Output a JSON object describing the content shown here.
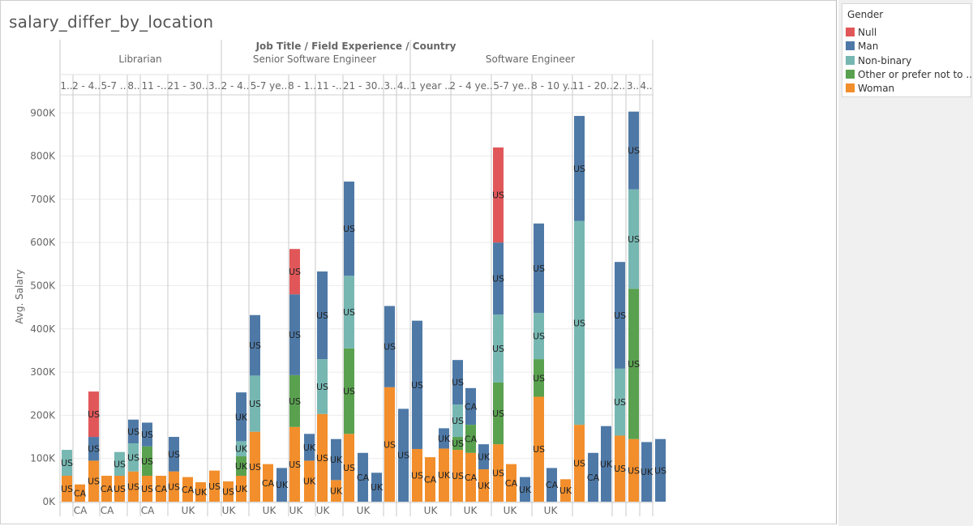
{
  "page_title": "salary_differ_by_location",
  "colors": {
    "Null": "#e15759",
    "Man": "#4e79a7",
    "Non-binary": "#76b7b2",
    "Other or prefer not to ..": "#59a14f",
    "Woman": "#f28e2b"
  },
  "legend": {
    "title": "Gender",
    "items": [
      "Null",
      "Man",
      "Non-binary",
      "Other or prefer not to ..",
      "Woman"
    ]
  },
  "chart_data": {
    "type": "bar",
    "stacked": true,
    "title": "salary_differ_by_location",
    "column_header_title": "Job Title / Field Experience / Country",
    "ylabel": "Avg. Salary",
    "ylim": [
      0,
      950000
    ],
    "yticks": [
      0,
      100000,
      200000,
      300000,
      400000,
      500000,
      600000,
      700000,
      800000,
      900000
    ],
    "ytick_labels": [
      "0K",
      "100K",
      "200K",
      "300K",
      "400K",
      "500K",
      "600K",
      "700K",
      "800K",
      "900K"
    ],
    "job_titles": [
      "Librarian",
      "Senior Software Engineer",
      "Software Engineer"
    ],
    "experience_labels": [
      "1..",
      "2 - 4..",
      "5-7 ..",
      "8..",
      "11 -..",
      "21 - 30..",
      "3..",
      "2 - 4..",
      "5-7 ye..",
      "8 - 1..",
      "11 -..",
      "21 - 30..",
      "3..",
      "4..",
      "1 year ..",
      "2 - 4 ye..",
      "5-7 ye..",
      "8 - 10 y..",
      "11 - 20..",
      "2..",
      "3..",
      "4.."
    ],
    "country_axis_labels": [
      "CA",
      "CA",
      "CA",
      "UK",
      "UK",
      "UK",
      "UK",
      "UK",
      "UK",
      "UK",
      "UK",
      "UK",
      "UK"
    ],
    "bars": [
      {
        "country": "US",
        "segments": [
          [
            "Woman",
            60000
          ],
          [
            "Non-binary",
            60000
          ]
        ]
      },
      {
        "country": "CA",
        "segments": [
          [
            "Woman",
            40000
          ]
        ]
      },
      {
        "country": "US",
        "segments": [
          [
            "Woman",
            95000
          ],
          [
            "Man",
            55000
          ],
          [
            "Null",
            105000
          ]
        ]
      },
      {
        "country": "CA",
        "segments": [
          [
            "Woman",
            60000
          ]
        ]
      },
      {
        "country": "US",
        "segments": [
          [
            "Woman",
            60000
          ],
          [
            "Non-binary",
            55000
          ]
        ]
      },
      {
        "country": "US",
        "segments": [
          [
            "Woman",
            70000
          ],
          [
            "Non-binary",
            65000
          ],
          [
            "Man",
            55000
          ]
        ]
      },
      {
        "country": "US",
        "segments": [
          [
            "Woman",
            60000
          ],
          [
            "Other or prefer not to ..",
            68000
          ],
          [
            "Man",
            55000
          ]
        ]
      },
      {
        "country": "CA",
        "segments": [
          [
            "Woman",
            60000
          ]
        ]
      },
      {
        "country": "US",
        "segments": [
          [
            "Woman",
            70000
          ],
          [
            "Man",
            80000
          ]
        ]
      },
      {
        "country": "CA",
        "segments": [
          [
            "Woman",
            57000
          ]
        ]
      },
      {
        "country": "UK",
        "segments": [
          [
            "Woman",
            45000
          ]
        ]
      },
      {
        "country": "US",
        "segments": [
          [
            "Woman",
            72000
          ]
        ]
      },
      {
        "country": "US",
        "segments": [
          [
            "Woman",
            47000
          ]
        ]
      },
      {
        "country": "UK",
        "segments": [
          [
            "Woman",
            60000
          ],
          [
            "Other or prefer not to ..",
            45000
          ],
          [
            "Non-binary",
            35000
          ],
          [
            "Man",
            113000
          ]
        ]
      },
      {
        "country": "US",
        "segments": [
          [
            "Woman",
            162000
          ],
          [
            "Non-binary",
            130000
          ],
          [
            "Man",
            140000
          ]
        ]
      },
      {
        "country": "CA",
        "segments": [
          [
            "Woman",
            87000
          ]
        ]
      },
      {
        "country": "UK",
        "segments": [
          [
            "Man",
            78000
          ]
        ]
      },
      {
        "country": "US",
        "segments": [
          [
            "Woman",
            173000
          ],
          [
            "Other or prefer not to ..",
            120000
          ],
          [
            "Man",
            187000
          ],
          [
            "Null",
            105000
          ]
        ]
      },
      {
        "country": "UK",
        "segments": [
          [
            "Woman",
            95000
          ],
          [
            "Man",
            62000
          ]
        ]
      },
      {
        "country": "US",
        "segments": [
          [
            "Woman",
            203000
          ],
          [
            "Non-binary",
            127000
          ],
          [
            "Man",
            203000
          ]
        ]
      },
      {
        "country": "UK",
        "segments": [
          [
            "Woman",
            50000
          ],
          [
            "Man",
            95000
          ]
        ]
      },
      {
        "country": "US",
        "segments": [
          [
            "Woman",
            157000
          ],
          [
            "Other or prefer not to ..",
            198000
          ],
          [
            "Non-binary",
            168000
          ],
          [
            "Man",
            218000
          ]
        ]
      },
      {
        "country": "CA",
        "segments": [
          [
            "Man",
            113000
          ]
        ]
      },
      {
        "country": "UK",
        "segments": [
          [
            "Man",
            67000
          ]
        ]
      },
      {
        "country": "US",
        "segments": [
          [
            "Woman",
            265000
          ],
          [
            "Man",
            188000
          ]
        ]
      },
      {
        "country": "US",
        "segments": [
          [
            "Man",
            215000
          ]
        ]
      },
      {
        "country": "US",
        "segments": [
          [
            "Woman",
            122000
          ],
          [
            "Man",
            297000
          ]
        ]
      },
      {
        "country": "CA",
        "segments": [
          [
            "Woman",
            103000
          ]
        ]
      },
      {
        "country": "UK",
        "segments": [
          [
            "Woman",
            123000
          ],
          [
            "Man",
            47000
          ]
        ]
      },
      {
        "country": "US",
        "segments": [
          [
            "Woman",
            120000
          ],
          [
            "Other or prefer not to ..",
            30000
          ],
          [
            "Non-binary",
            75000
          ],
          [
            "Man",
            103000
          ]
        ]
      },
      {
        "country": "CA",
        "segments": [
          [
            "Woman",
            113000
          ],
          [
            "Other or prefer not to ..",
            65000
          ],
          [
            "Man",
            85000
          ]
        ]
      },
      {
        "country": "UK",
        "segments": [
          [
            "Woman",
            75000
          ],
          [
            "Man",
            58000
          ]
        ]
      },
      {
        "country": "US",
        "segments": [
          [
            "Woman",
            133000
          ],
          [
            "Other or prefer not to ..",
            143000
          ],
          [
            "Non-binary",
            157000
          ],
          [
            "Man",
            167000
          ],
          [
            "Null",
            220000
          ]
        ]
      },
      {
        "country": "CA",
        "segments": [
          [
            "Woman",
            87000
          ]
        ]
      },
      {
        "country": "UK",
        "segments": [
          [
            "Man",
            57000
          ]
        ]
      },
      {
        "country": "US",
        "segments": [
          [
            "Woman",
            243000
          ],
          [
            "Other or prefer not to ..",
            87000
          ],
          [
            "Non-binary",
            107000
          ],
          [
            "Man",
            207000
          ]
        ]
      },
      {
        "country": "CA",
        "segments": [
          [
            "Man",
            78000
          ]
        ]
      },
      {
        "country": "UK",
        "segments": [
          [
            "Woman",
            52000
          ]
        ]
      },
      {
        "country": "US",
        "segments": [
          [
            "Woman",
            178000
          ],
          [
            "Non-binary",
            472000
          ],
          [
            "Man",
            243000
          ]
        ]
      },
      {
        "country": "CA",
        "segments": [
          [
            "Man",
            113000
          ]
        ]
      },
      {
        "country": "UK",
        "segments": [
          [
            "Man",
            175000
          ]
        ]
      },
      {
        "country": "US",
        "segments": [
          [
            "Woman",
            153000
          ],
          [
            "Non-binary",
            155000
          ],
          [
            "Man",
            247000
          ]
        ]
      },
      {
        "country": "US",
        "segments": [
          [
            "Woman",
            145000
          ],
          [
            "Other or prefer not to ..",
            348000
          ],
          [
            "Non-binary",
            230000
          ],
          [
            "Man",
            180000
          ]
        ]
      },
      {
        "country": "UK",
        "segments": [
          [
            "Man",
            138000
          ]
        ]
      },
      {
        "country": "US",
        "segments": [
          [
            "Man",
            145000
          ]
        ]
      }
    ]
  }
}
